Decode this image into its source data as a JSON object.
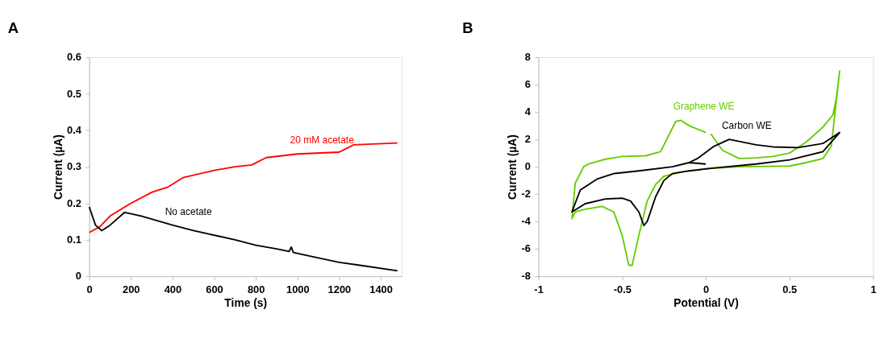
{
  "chart_data": [
    {
      "type": "line",
      "title": "A",
      "xlabel": "Time (s)",
      "ylabel": "Current (µA)",
      "xlim": [
        0,
        1500
      ],
      "ylim": [
        0,
        0.6
      ],
      "xticks": [
        0,
        200,
        400,
        600,
        800,
        1000,
        1200,
        1400
      ],
      "yticks": [
        0,
        0.1,
        0.2,
        0.3,
        0.4,
        0.5,
        0.6
      ],
      "grid": false,
      "marker": "none",
      "line_style": "solid",
      "series": [
        {
          "name": "20 mM acetate",
          "color": "#ff0000",
          "x": [
            0,
            50,
            100,
            200,
            300,
            380,
            450,
            600,
            700,
            780,
            850,
            1000,
            1200,
            1270,
            1480
          ],
          "values": [
            0.12,
            0.135,
            0.165,
            0.2,
            0.23,
            0.245,
            0.27,
            0.29,
            0.3,
            0.305,
            0.325,
            0.335,
            0.34,
            0.36,
            0.365
          ]
        },
        {
          "name": "No acetate",
          "color": "#000000",
          "x": [
            0,
            30,
            60,
            100,
            170,
            250,
            400,
            500,
            620,
            700,
            800,
            900,
            960,
            970,
            980,
            1100,
            1200,
            1300,
            1480
          ],
          "values": [
            0.19,
            0.14,
            0.125,
            0.14,
            0.175,
            0.165,
            0.14,
            0.125,
            0.11,
            0.1,
            0.085,
            0.075,
            0.068,
            0.08,
            0.065,
            0.05,
            0.038,
            0.03,
            0.015
          ]
        }
      ]
    },
    {
      "type": "line",
      "title": "B",
      "xlabel": "Potential (V)",
      "ylabel": "Current (µA)",
      "xlim": [
        -1,
        1
      ],
      "ylim": [
        -8,
        8
      ],
      "xticks": [
        -1,
        -0.5,
        0,
        0.5,
        1
      ],
      "yticks": [
        -8,
        -6,
        -4,
        -2,
        0,
        2,
        4,
        6,
        8
      ],
      "grid": false,
      "marker": "none",
      "line_style": "solid",
      "series": [
        {
          "name": "Graphene WE",
          "color": "#66cc00",
          "x": [
            0.03,
            0.1,
            0.2,
            0.3,
            0.4,
            0.5,
            0.6,
            0.7,
            0.76,
            0.78,
            0.8,
            0.75,
            0.7,
            0.6,
            0.5,
            0.2,
            0.0,
            -0.15,
            -0.25,
            -0.3,
            -0.35,
            -0.4,
            -0.44,
            -0.46,
            -0.5,
            -0.55,
            -0.62,
            -0.72,
            -0.78,
            -0.8,
            -0.78,
            -0.73,
            -0.7,
            -0.6,
            -0.5,
            -0.36,
            -0.27,
            -0.18,
            -0.15,
            -0.1,
            0.0
          ],
          "values": [
            2.4,
            1.2,
            0.6,
            0.65,
            0.75,
            1.0,
            1.8,
            2.9,
            3.8,
            5.0,
            7.0,
            1.5,
            0.6,
            0.3,
            0.05,
            0.0,
            -0.15,
            -0.4,
            -0.7,
            -1.3,
            -2.5,
            -5.0,
            -7.2,
            -7.2,
            -5.0,
            -3.3,
            -2.9,
            -3.1,
            -3.3,
            -3.8,
            -1.2,
            0.0,
            0.2,
            0.55,
            0.75,
            0.8,
            1.1,
            3.3,
            3.4,
            3.0,
            2.5
          ]
        },
        {
          "name": "Carbon WE",
          "color": "#000000",
          "x": [
            0.0,
            -0.1,
            -0.2,
            -0.4,
            -0.55,
            -0.65,
            -0.75,
            -0.8,
            -0.72,
            -0.6,
            -0.5,
            -0.45,
            -0.4,
            -0.37,
            -0.35,
            -0.3,
            -0.25,
            -0.2,
            -0.1,
            0.04,
            0.3,
            0.5,
            0.7,
            0.8,
            0.7,
            0.55,
            0.4,
            0.3,
            0.14,
            0.05,
            -0.05,
            -0.1
          ],
          "values": [
            0.2,
            0.3,
            0.0,
            -0.3,
            -0.5,
            -0.9,
            -1.7,
            -3.3,
            -2.7,
            -2.35,
            -2.3,
            -2.5,
            -3.3,
            -4.3,
            -4.0,
            -2.2,
            -1.0,
            -0.5,
            -0.3,
            -0.1,
            0.2,
            0.5,
            1.1,
            2.5,
            1.7,
            1.4,
            1.45,
            1.6,
            2.0,
            1.5,
            0.6,
            0.3
          ]
        }
      ]
    }
  ]
}
